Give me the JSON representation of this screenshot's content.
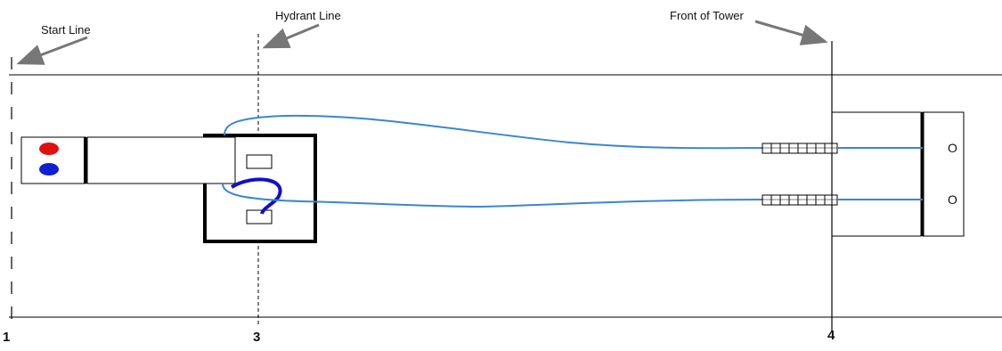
{
  "labels": {
    "start_line": "Start Line",
    "hydrant_line": "Hydrant Line",
    "front_of_tower": "Front of Tower"
  },
  "markers": {
    "m1": "1",
    "m3": "3",
    "m4": "4"
  },
  "tower_outlets": {
    "upper": "O",
    "lower": "O"
  },
  "colors": {
    "line": "#000000",
    "hose": "#3a86d4",
    "hose_dark": "#1010c8",
    "red_dot": "#e01010",
    "blue_dot": "#1020d0"
  },
  "icons": [
    "arrow-icon",
    "hose-coupling-icon",
    "red-dot-icon",
    "blue-dot-icon"
  ]
}
